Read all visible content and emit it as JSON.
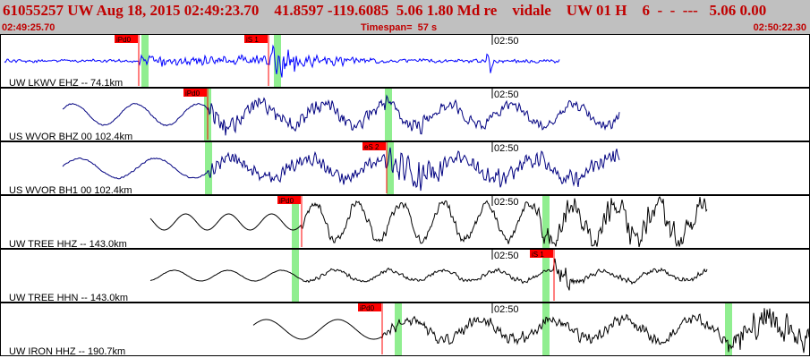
{
  "header": {
    "title": "61055257 UW Aug 18, 2015 02:49:23.70    41.8597 -119.6085  5.06 1.80 Md re    vidale    UW 01 H    6  -  -  ---   5.06 0.00",
    "start_time": "02:49:25.70",
    "timespan": "Timespan=  57 s",
    "end_time": "02:50:22.30"
  },
  "traces": [
    {
      "label": "UW LKWV EHZ -- 74.1km",
      "color": "#0000ff",
      "minute_label": "02:50",
      "picks": [
        {
          "label": "iPd0"
        },
        {
          "label": "iS 1"
        }
      ]
    },
    {
      "label": "US WVOR BHZ 00 102.4km",
      "color": "#000080",
      "minute_label": "02:50",
      "picks": [
        {
          "label": "iPd0"
        }
      ]
    },
    {
      "label": "US WVOR BH1 00 102.4km",
      "color": "#000080",
      "minute_label": "02:50",
      "picks": [
        {
          "label": "eS 2"
        }
      ]
    },
    {
      "label": "UW TREE HHZ -- 143.0km",
      "color": "#000000",
      "minute_label": "02:50",
      "picks": [
        {
          "label": "iPd0"
        }
      ]
    },
    {
      "label": "UW TREE HHN -- 143.0km",
      "color": "#000000",
      "minute_label": "02:50",
      "picks": [
        {
          "label": "iS 1"
        }
      ]
    },
    {
      "label": "UW IRON HHZ -- 190.7km",
      "color": "#000000",
      "minute_label": "02:50",
      "picks": [
        {
          "label": "iPd0"
        }
      ]
    }
  ],
  "colors": {
    "pick_flag": "#ff0000",
    "green_marker": "#90ee90",
    "header_background": "#c0c0c0",
    "header_text": "#c00000"
  }
}
